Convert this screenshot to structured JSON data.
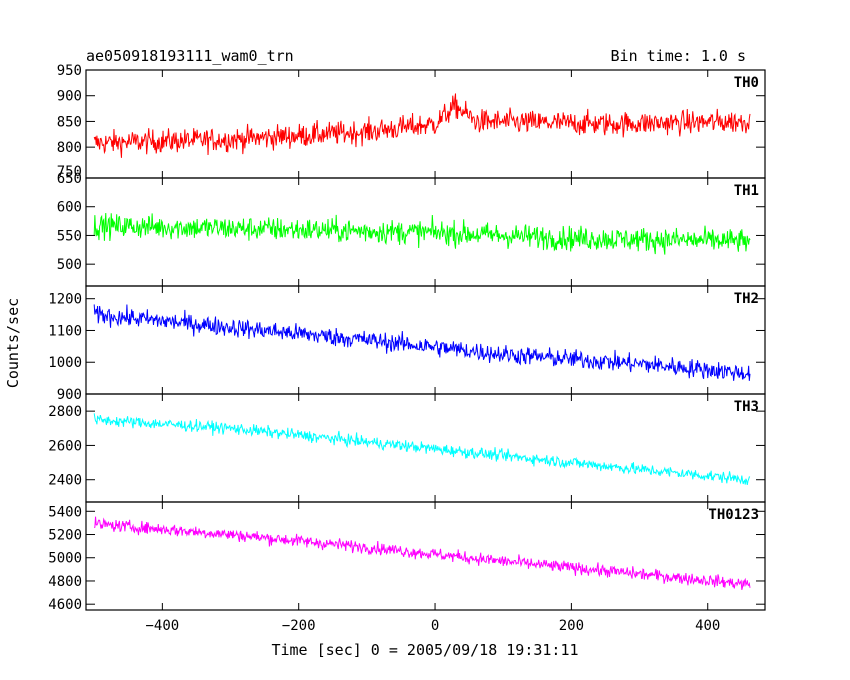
{
  "chart_data": {
    "type": "line",
    "title": "ae050918193111_wam0_trn",
    "subtitle": "Bin time: 1.0 s",
    "xlabel": "Time [sec] 0 = 2005/09/18 19:31:11",
    "ylabel": "Counts/sec",
    "xlim": [
      -512,
      484
    ],
    "x_ticks": [
      -400,
      -200,
      0,
      200,
      400
    ],
    "data_x_range": [
      -500,
      462
    ],
    "bin_time_s": 1.0,
    "grid": false,
    "legend": "none",
    "panels": [
      {
        "label": "TH0",
        "color": "#ff0000",
        "ylim": [
          740,
          950
        ],
        "y_ticks": [
          800,
          850,
          900,
          950
        ],
        "y_tick_labels": [
          "800",
          "850",
          "900",
          "950"
        ],
        "extra_tick_label": "750",
        "trend": [
          [
            -500,
            808
          ],
          [
            -300,
            815
          ],
          [
            -100,
            830
          ],
          [
            0,
            845
          ],
          [
            30,
            880
          ],
          [
            60,
            850
          ],
          [
            250,
            845
          ],
          [
            462,
            850
          ]
        ],
        "noise": 33
      },
      {
        "label": "TH1",
        "color": "#00ff00",
        "ylim": [
          462,
          650
        ],
        "y_ticks": [
          500,
          550,
          600,
          650
        ],
        "y_tick_labels": [
          "500",
          "550",
          "600",
          "650"
        ],
        "trend": [
          [
            -500,
            567
          ],
          [
            -200,
            560
          ],
          [
            0,
            555
          ],
          [
            200,
            545
          ],
          [
            462,
            540
          ]
        ],
        "noise": 30
      },
      {
        "label": "TH2",
        "color": "#0000ff",
        "ylim": [
          900,
          1240
        ],
        "y_ticks": [
          900,
          1000,
          1100,
          1200
        ],
        "y_tick_labels": [
          "900",
          "1000",
          "1100",
          "1200"
        ],
        "trend": [
          [
            -500,
            1150
          ],
          [
            -300,
            1110
          ],
          [
            -100,
            1070
          ],
          [
            100,
            1025
          ],
          [
            300,
            995
          ],
          [
            462,
            965
          ]
        ],
        "noise": 42
      },
      {
        "label": "TH3",
        "color": "#00ffff",
        "ylim": [
          2270,
          2900
        ],
        "y_ticks": [
          2400,
          2600,
          2800
        ],
        "y_tick_labels": [
          "2400",
          "2600",
          "2800"
        ],
        "trend": [
          [
            -500,
            2750
          ],
          [
            -300,
            2700
          ],
          [
            -100,
            2620
          ],
          [
            100,
            2540
          ],
          [
            300,
            2460
          ],
          [
            462,
            2400
          ]
        ],
        "noise": 48
      },
      {
        "label": "TH0123",
        "color": "#ff00ff",
        "ylim": [
          4550,
          5480
        ],
        "y_ticks": [
          4600,
          4800,
          5000,
          5200,
          5400
        ],
        "y_tick_labels": [
          "4600",
          "4800",
          "5000",
          "5200",
          "5400"
        ],
        "trend": [
          [
            -500,
            5290
          ],
          [
            -300,
            5200
          ],
          [
            -100,
            5090
          ],
          [
            100,
            4970
          ],
          [
            300,
            4860
          ],
          [
            462,
            4770
          ]
        ],
        "noise": 75
      }
    ]
  }
}
